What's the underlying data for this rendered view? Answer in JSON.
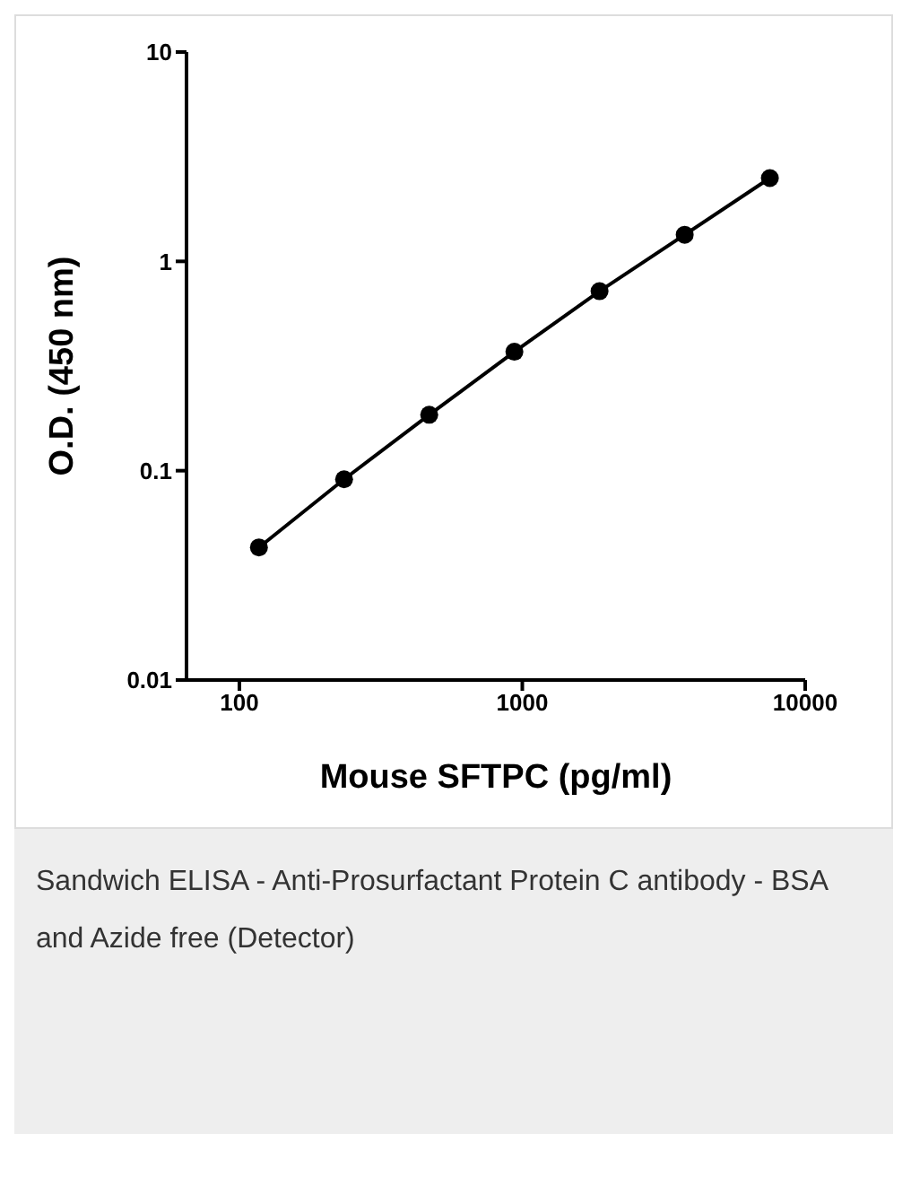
{
  "chart_data": {
    "type": "line",
    "xlabel": "Mouse SFTPC (pg/ml)",
    "ylabel": "O.D. (450 nm)",
    "x": [
      117.2,
      234.4,
      468.75,
      937.5,
      1875,
      3750,
      7500
    ],
    "series": [
      {
        "color": "#000000",
        "values": [
          0.043,
          0.091,
          0.185,
          0.37,
          0.72,
          1.34,
          2.5
        ]
      }
    ],
    "log": "xy",
    "xlim": [
      65,
      10000
    ],
    "xticks": [
      100,
      1000,
      10000
    ],
    "ylim": [
      0.01,
      10
    ],
    "yticks": [
      0.01,
      0.1,
      1,
      10
    ],
    "grid": false,
    "legend": false,
    "marker": "circle",
    "line_style": "solid",
    "annotations": [
      "Sandwich ELISA - Anti-Prosurfactant Protein C antibody - BSA and Azide free (Detector)"
    ]
  }
}
